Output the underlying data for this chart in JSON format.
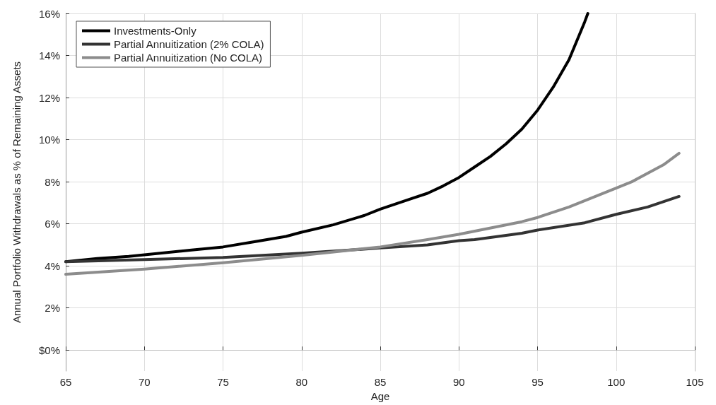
{
  "chart_data": {
    "type": "line",
    "xlabel": "Age",
    "ylabel": "Annual Portfolio Withdrawals as % of Remaining Assets",
    "xlim": [
      65,
      105
    ],
    "xticks": [
      65,
      70,
      75,
      80,
      85,
      90,
      95,
      100,
      105
    ],
    "ylim": [
      -1,
      16
    ],
    "yticks": [
      {
        "value": 0,
        "label": "$0%"
      },
      {
        "value": 2,
        "label": "2%"
      },
      {
        "value": 4,
        "label": "4%"
      },
      {
        "value": 6,
        "label": "6%"
      },
      {
        "value": 8,
        "label": "8%"
      },
      {
        "value": 10,
        "label": "10%"
      },
      {
        "value": 12,
        "label": "12%"
      },
      {
        "value": 14,
        "label": "14%"
      },
      {
        "value": 16,
        "label": "16%"
      }
    ],
    "grid": true,
    "legend": "top left",
    "marker": "none",
    "line_style": "solid",
    "series": [
      {
        "name": "Investments-Only",
        "color": "#000000",
        "x": [
          65,
          67,
          69,
          71,
          73,
          75,
          77,
          79,
          80,
          82,
          84,
          85,
          86,
          87,
          88,
          89,
          90,
          91,
          92,
          93,
          94,
          95,
          96,
          97,
          98,
          98.2
        ],
        "values": [
          4.2,
          4.35,
          4.45,
          4.6,
          4.75,
          4.9,
          5.15,
          5.4,
          5.6,
          5.95,
          6.4,
          6.7,
          6.95,
          7.2,
          7.45,
          7.8,
          8.2,
          8.7,
          9.2,
          9.8,
          10.5,
          11.4,
          12.5,
          13.8,
          15.6,
          16
        ]
      },
      {
        "name": "Partial Annuitization (2% COLA)",
        "color": "#333333",
        "x": [
          65,
          70,
          75,
          80,
          85,
          88,
          90,
          91,
          94,
          95,
          98,
          100,
          102,
          104
        ],
        "values": [
          4.2,
          4.3,
          4.4,
          4.6,
          4.85,
          5.0,
          5.2,
          5.25,
          5.55,
          5.7,
          6.05,
          6.45,
          6.8,
          7.3
        ]
      },
      {
        "name": "Partial Annuitization (No COLA)",
        "color": "#8c8c8c",
        "x": [
          65,
          70,
          75,
          80,
          85,
          88,
          90,
          94,
          95,
          97,
          100,
          101,
          103,
          104
        ],
        "values": [
          3.6,
          3.85,
          4.15,
          4.5,
          4.9,
          5.25,
          5.5,
          6.1,
          6.3,
          6.8,
          7.7,
          8.0,
          8.8,
          9.35
        ]
      }
    ]
  }
}
